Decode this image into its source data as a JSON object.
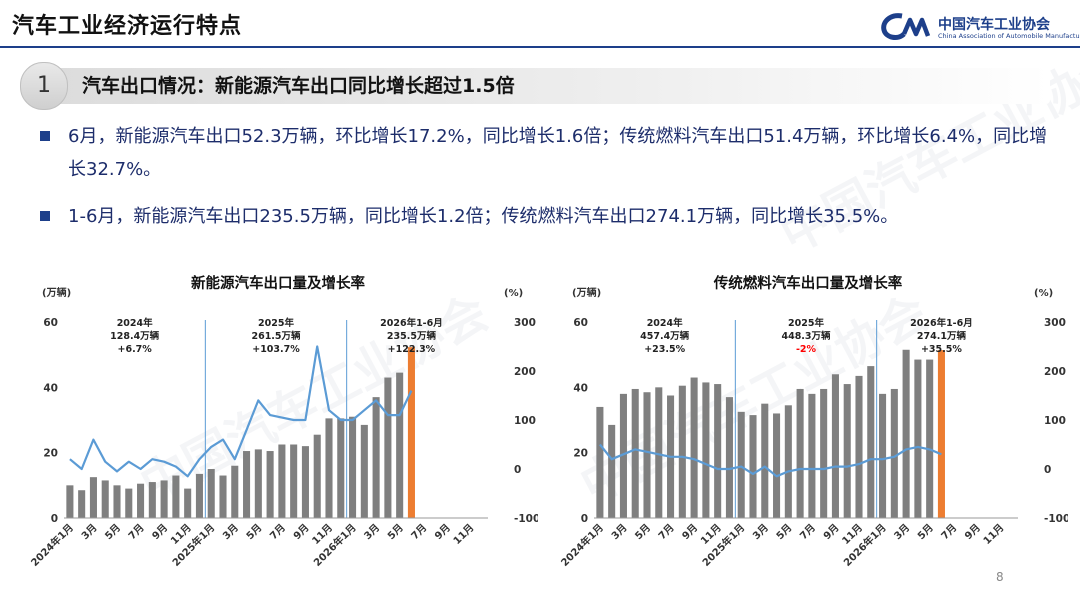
{
  "header": {
    "title": "汽车工业经济运行特点",
    "logo_cn": "中国汽车工业协会",
    "logo_en": "China Association of Automobile Manufacturers"
  },
  "section": {
    "number": "1",
    "title": "汽车出口情况：新能源汽车出口同比增长超过1.5倍"
  },
  "bullets": [
    "6月，新能源汽车出口52.3万辆，环比增长17.2%，同比增长1.6倍；传统燃料汽车出口51.4万辆，环比增长6.4%，同比增长32.7%。",
    "1-6月，新能源汽车出口235.5万辆，同比增长1.2倍；传统燃料汽车出口274.1万辆，同比增长35.5%。"
  ],
  "page_number": "8",
  "colors": {
    "bar": "#7f7f7f",
    "line": "#5b9bd5",
    "highlight": "#ed7d31",
    "negative": "#ff0000",
    "accent": "#1d3f8a"
  },
  "chart_data": [
    {
      "type": "bar",
      "title": "新能源汽车出口量及增长率",
      "ylabel": "(万辆)",
      "y2label": "(%)",
      "ylim": [
        0,
        60
      ],
      "y2lim": [
        -100,
        300
      ],
      "yticks": [
        "0",
        "20",
        "40",
        "60"
      ],
      "y2ticks": [
        "-100",
        "0",
        "100",
        "200",
        "300"
      ],
      "x_tick_labels": [
        "2024年1月",
        "3月",
        "5月",
        "7月",
        "9月",
        "11月",
        "2025年1月",
        "3月",
        "5月",
        "7月",
        "9月",
        "11月",
        "2026年1月",
        "3月",
        "5月",
        "7月",
        "9月",
        "11月"
      ],
      "x": [
        "2024-01",
        "2024-02",
        "2024-03",
        "2024-04",
        "2024-05",
        "2024-06",
        "2024-07",
        "2024-08",
        "2024-09",
        "2024-10",
        "2024-11",
        "2024-12",
        "2025-01",
        "2025-02",
        "2025-03",
        "2025-04",
        "2025-05",
        "2025-06",
        "2025-07",
        "2025-08",
        "2025-09",
        "2025-10",
        "2025-11",
        "2025-12",
        "2026-01",
        "2026-02",
        "2026-03",
        "2026-04",
        "2026-05",
        "2026-06",
        "2026-07",
        "2026-08",
        "2026-09",
        "2026-10",
        "2026-11",
        "2026-12"
      ],
      "series": [
        {
          "kind": "bar",
          "axis": "left",
          "values": [
            10,
            8.5,
            12.5,
            11.5,
            10,
            9,
            10.5,
            11,
            11.5,
            13,
            9,
            13.5,
            15,
            13,
            16,
            20.5,
            21,
            20.5,
            22.5,
            22.5,
            22,
            25.5,
            30.5,
            30.5,
            31,
            28.5,
            37,
            43,
            44.5,
            52.3,
            null,
            null,
            null,
            null,
            null,
            null
          ]
        },
        {
          "kind": "line",
          "axis": "right",
          "values": [
            20,
            0,
            60,
            15,
            -5,
            15,
            0,
            20,
            15,
            5,
            -15,
            20,
            45,
            60,
            20,
            80,
            140,
            110,
            105,
            100,
            100,
            250,
            120,
            100,
            100,
            120,
            140,
            110,
            110,
            160,
            null,
            null,
            null,
            null,
            null,
            null
          ]
        }
      ],
      "highlight_index": 29,
      "annotations": [
        {
          "period": "2024年",
          "total": "128.4万辆",
          "growth": "+6.7%"
        },
        {
          "period": "2025年",
          "total": "261.5万辆",
          "growth": "+103.7%"
        },
        {
          "period": "2026年1-6月",
          "total": "235.5万辆",
          "growth": "+122.3%"
        }
      ]
    },
    {
      "type": "bar",
      "title": "传统燃料汽车出口量及增长率",
      "ylabel": "(万辆)",
      "y2label": "(%)",
      "ylim": [
        0,
        60
      ],
      "y2lim": [
        -100,
        300
      ],
      "yticks": [
        "0",
        "20",
        "40",
        "60"
      ],
      "y2ticks": [
        "-100",
        "0",
        "100",
        "200",
        "300"
      ],
      "x_tick_labels": [
        "2024年1月",
        "3月",
        "5月",
        "7月",
        "9月",
        "11月",
        "2025年1月",
        "3月",
        "5月",
        "7月",
        "9月",
        "11月",
        "2026年1月",
        "3月",
        "5月",
        "7月",
        "9月",
        "11月"
      ],
      "x": [
        "2024-01",
        "2024-02",
        "2024-03",
        "2024-04",
        "2024-05",
        "2024-06",
        "2024-07",
        "2024-08",
        "2024-09",
        "2024-10",
        "2024-11",
        "2024-12",
        "2025-01",
        "2025-02",
        "2025-03",
        "2025-04",
        "2025-05",
        "2025-06",
        "2025-07",
        "2025-08",
        "2025-09",
        "2025-10",
        "2025-11",
        "2025-12",
        "2026-01",
        "2026-02",
        "2026-03",
        "2026-04",
        "2026-05",
        "2026-06",
        "2026-07",
        "2026-08",
        "2026-09",
        "2026-10",
        "2026-11",
        "2026-12"
      ],
      "series": [
        {
          "kind": "bar",
          "axis": "left",
          "values": [
            34,
            28.5,
            38,
            39.5,
            38.5,
            40,
            37.5,
            40.5,
            43,
            41.5,
            41,
            37,
            32.5,
            31.5,
            35,
            32,
            34.5,
            39.5,
            38,
            39.5,
            44,
            41,
            43.5,
            46.5,
            38,
            39.5,
            51.5,
            48.5,
            48.5,
            51.4,
            null,
            null,
            null,
            null,
            null,
            null
          ]
        },
        {
          "kind": "line",
          "axis": "right",
          "values": [
            50,
            20,
            30,
            40,
            35,
            30,
            25,
            25,
            20,
            10,
            0,
            0,
            5,
            -10,
            5,
            -15,
            -5,
            0,
            0,
            0,
            5,
            5,
            10,
            20,
            20,
            25,
            40,
            45,
            40,
            30,
            null,
            null,
            null,
            null,
            null,
            null
          ]
        }
      ],
      "highlight_index": 29,
      "annotations": [
        {
          "period": "2024年",
          "total": "457.4万辆",
          "growth": "+23.5%"
        },
        {
          "period": "2025年",
          "total": "448.3万辆",
          "growth": "-2%"
        },
        {
          "period": "2026年1-6月",
          "total": "274.1万辆",
          "growth": "+35.5%"
        }
      ]
    }
  ]
}
